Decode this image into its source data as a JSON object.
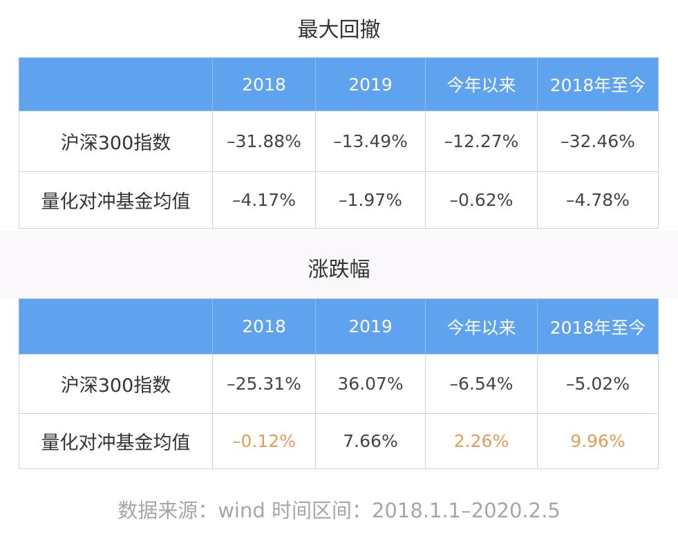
{
  "tables": [
    {
      "title": "最大回撤",
      "header": [
        "2018",
        "2019",
        "今年以来",
        "2018年至今"
      ],
      "rows": [
        {
          "label": "沪深300指数",
          "values": [
            "–31.88%",
            "–13.49%",
            "–12.27%",
            "–32.46%"
          ]
        },
        {
          "label": "量化对冲基金均值",
          "values": [
            "–4.17%",
            "–1.97%",
            "–0.62%",
            "–4.78%"
          ]
        }
      ]
    },
    {
      "title": "涨跌幅",
      "header": [
        "2018",
        "2019",
        "今年以来",
        "2018年至今"
      ],
      "rows": [
        {
          "label": "沪深300指数",
          "values": [
            "–25.31%",
            "36.07%",
            "–6.54%",
            "–5.02%"
          ]
        },
        {
          "label": "量化对冲基金均值",
          "values": [
            "–0.12%",
            "7.66%",
            "2.26%",
            "9.96%"
          ]
        }
      ]
    }
  ],
  "footer": "数据来源：wind 时间区间：2018.1.1–2020.2.5"
}
